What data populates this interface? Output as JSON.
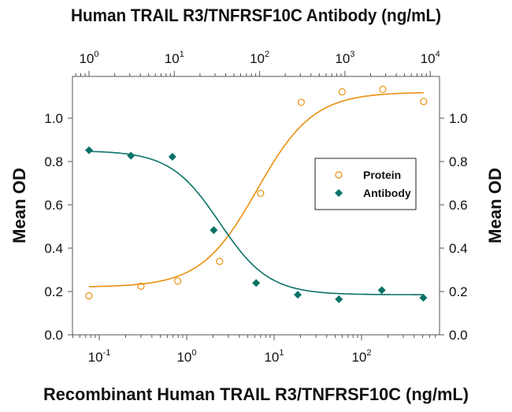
{
  "chart_data": {
    "type": "scatter",
    "title": "Human TRAIL R3/TNFRSF10C Antibody (ng/mL)",
    "xlabel": "Recombinant Human TRAIL R3/TNFRSF10C (ng/mL)",
    "ylabel_left": "Mean OD",
    "ylabel_right": "Mean OD",
    "x_bottom": {
      "scale": "log",
      "base_text": "10",
      "tick_exponents": [
        "-1",
        "0",
        "1",
        "2"
      ],
      "range_log10": [
        -1.29,
        2.88
      ]
    },
    "x_top": {
      "scale": "log",
      "base_text": "10",
      "tick_exponents": [
        "0",
        "1",
        "2",
        "3",
        "4"
      ],
      "range_log10": [
        -0.19,
        4.07
      ]
    },
    "y": {
      "range": [
        0,
        1.18
      ],
      "ticks": [
        "0.0",
        "0.2",
        "0.4",
        "0.6",
        "0.8",
        "1.0"
      ]
    },
    "grid": false,
    "legend_position": "center-right",
    "series": [
      {
        "name": "Protein",
        "axis": "bottom",
        "marker": "open-circle",
        "color": "#E8900F",
        "x": [
          0.076,
          0.3,
          0.79,
          2.38,
          7.0,
          20.4,
          60,
          175,
          513
        ],
        "y": [
          0.18,
          0.224,
          0.248,
          0.339,
          0.653,
          1.073,
          1.122,
          1.133,
          1.077
        ],
        "fit": {
          "bottom": 0.22,
          "top": 1.12,
          "ec50": 6.4,
          "hill": 1.35
        }
      },
      {
        "name": "Antibody",
        "axis": "top",
        "marker": "filled-diamond",
        "color": "#0B7267",
        "x": [
          1,
          3.1,
          9.5,
          29,
          91,
          280,
          850,
          2700,
          8300
        ],
        "y": [
          0.852,
          0.827,
          0.822,
          0.483,
          0.239,
          0.185,
          0.164,
          0.206,
          0.171
        ],
        "fit": {
          "bottom": 0.185,
          "top": 0.85,
          "ec50": 34,
          "hill": -1.5
        }
      }
    ]
  }
}
